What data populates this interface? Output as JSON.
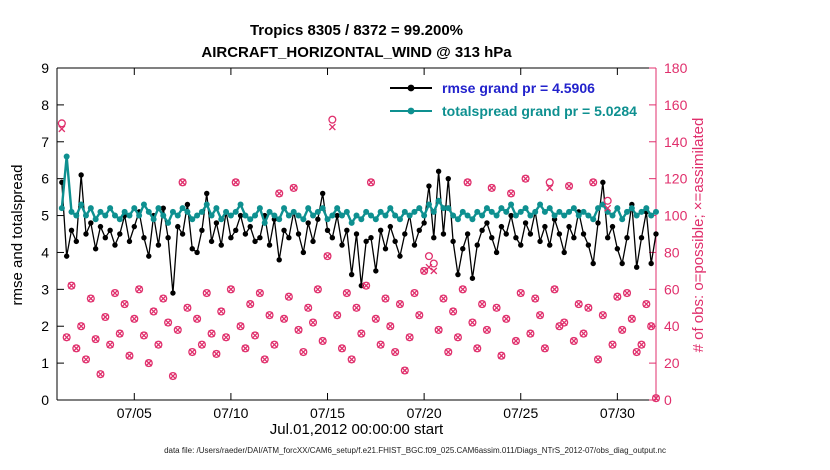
{
  "title_line1": "Tropics 8305 / 8372 = 99.200%",
  "title_line2": "AIRCRAFT_HORIZONTAL_WIND @ 313 hPa",
  "footer": "data file: /Users/raeder/DAI/ATM_forcXX/CAM6_setup/f.e21.FHIST_BGC.f09_025.CAM6assim.011/Diags_NTrS_2012-07/obs_diag_output.nc",
  "colors": {
    "rmse": "#000000",
    "totalspread": "#0e9090",
    "obs": "#e02f6c",
    "legend_rmse_text": "#2222cc",
    "axis": "#000000"
  },
  "legend": {
    "items": [
      {
        "label": "rmse grand pr = 4.5906",
        "line_color": "#000000",
        "text_color": "#2222cc"
      },
      {
        "label": "totalspread grand pr = 5.0284",
        "line_color": "#0e9090",
        "text_color": "#0e9090"
      }
    ]
  },
  "chart_data": {
    "type": "line+scatter",
    "xlabel": "Jul.01,2012 00:00:00 start",
    "x_range": [
      1,
      32
    ],
    "x_start_day": 1.25,
    "x_step_days": 0.25,
    "x_ticks": [
      {
        "v": 5,
        "label": "07/05"
      },
      {
        "v": 10,
        "label": "07/10"
      },
      {
        "v": 15,
        "label": "07/15"
      },
      {
        "v": 20,
        "label": "07/20"
      },
      {
        "v": 25,
        "label": "07/25"
      },
      {
        "v": 30,
        "label": "07/30"
      }
    ],
    "y_left": {
      "label": "rmse and totalspread",
      "range": [
        0,
        9
      ],
      "tick_step": 1
    },
    "y_right": {
      "label": "# of obs: o=possible; ×=assimilated",
      "range": [
        0,
        180
      ],
      "tick_step": 20
    },
    "rmse_grand_pr": 4.5906,
    "totalspread_grand_pr": 5.0284,
    "grid": false,
    "legend_position": "top-center-inside",
    "series": [
      {
        "name": "rmse",
        "axis": "left",
        "color": "#000000",
        "marker": "filled-circle",
        "values": [
          5.9,
          3.9,
          4.6,
          4.3,
          6.1,
          4.5,
          4.8,
          4.1,
          4.7,
          4.4,
          4.6,
          4.2,
          4.5,
          5.0,
          4.3,
          4.7,
          5.1,
          4.4,
          3.9,
          5.0,
          4.2,
          5.2,
          4.4,
          2.9,
          4.7,
          4.5,
          5.3,
          4.1,
          4.0,
          4.6,
          5.6,
          4.3,
          4.8,
          4.2,
          5.1,
          4.4,
          4.6,
          5.0,
          4.5,
          4.7,
          4.3,
          4.4,
          5.0,
          4.2,
          4.9,
          3.8,
          4.6,
          4.4,
          5.1,
          4.5,
          4.0,
          4.8,
          4.3,
          4.9,
          5.6,
          4.6,
          4.4,
          5.0,
          4.2,
          4.6,
          3.4,
          4.5,
          3.1,
          4.3,
          4.4,
          3.5,
          4.6,
          4.1,
          4.7,
          4.3,
          3.9,
          4.5,
          5.0,
          4.2,
          4.6,
          4.8,
          5.8,
          4.4,
          6.2,
          4.5,
          6.0,
          4.3,
          3.4,
          4.1,
          4.5,
          3.3,
          4.2,
          4.6,
          4.8,
          4.4,
          4.0,
          4.7,
          4.5,
          5.0,
          4.4,
          4.2,
          4.8,
          4.5,
          5.1,
          4.3,
          4.7,
          4.2,
          4.9,
          4.5,
          4.0,
          4.7,
          4.4,
          5.1,
          4.5,
          4.2,
          3.7,
          4.8,
          5.9,
          4.4,
          4.7,
          4.1,
          3.7,
          4.4,
          5.3,
          3.6,
          4.4,
          5.1,
          3.7,
          4.5
        ]
      },
      {
        "name": "totalspread",
        "axis": "left",
        "color": "#0e9090",
        "marker": "filled-circle",
        "values": [
          5.2,
          6.6,
          5.1,
          5.0,
          5.3,
          5.0,
          5.2,
          4.9,
          5.1,
          5.0,
          5.2,
          5.0,
          4.9,
          5.1,
          5.0,
          5.2,
          5.0,
          5.3,
          5.1,
          4.9,
          5.2,
          5.0,
          4.8,
          5.1,
          5.0,
          5.2,
          5.1,
          4.9,
          5.0,
          5.1,
          5.3,
          5.0,
          5.2,
          4.9,
          5.1,
          5.0,
          5.1,
          5.3,
          5.0,
          4.9,
          5.0,
          5.2,
          4.8,
          5.1,
          5.0,
          4.9,
          5.2,
          5.0,
          5.1,
          5.0,
          4.9,
          5.2,
          5.0,
          5.1,
          5.2,
          4.9,
          5.0,
          5.2,
          5.0,
          5.1,
          4.8,
          5.0,
          4.9,
          5.1,
          5.0,
          4.9,
          5.1,
          5.0,
          5.2,
          5.0,
          4.9,
          5.1,
          5.0,
          5.1,
          5.2,
          5.0,
          5.3,
          5.1,
          5.4,
          5.2,
          5.2,
          5.0,
          4.9,
          5.1,
          5.0,
          4.9,
          5.1,
          5.0,
          5.2,
          5.1,
          5.0,
          5.2,
          5.1,
          5.3,
          5.0,
          5.1,
          5.2,
          5.0,
          5.1,
          5.3,
          5.1,
          5.2,
          5.0,
          5.1,
          5.0,
          5.1,
          5.2,
          5.0,
          5.1,
          5.0,
          4.9,
          5.2,
          5.3,
          5.1,
          5.0,
          5.2,
          4.9,
          5.1,
          5.2,
          5.0,
          5.1,
          5.2,
          5.0,
          5.1
        ]
      },
      {
        "name": "observations possible",
        "axis": "right",
        "color": "#e02f6c",
        "marker": "open-circle",
        "values": [
          150,
          34,
          62,
          28,
          40,
          22,
          55,
          33,
          14,
          45,
          30,
          58,
          36,
          52,
          24,
          44,
          60,
          35,
          20,
          48,
          30,
          55,
          42,
          13,
          38,
          118,
          50,
          26,
          44,
          30,
          58,
          36,
          25,
          48,
          34,
          60,
          118,
          40,
          28,
          52,
          35,
          58,
          22,
          46,
          30,
          112,
          44,
          56,
          115,
          38,
          26,
          50,
          42,
          60,
          32,
          78,
          152,
          46,
          28,
          58,
          22,
          50,
          36,
          62,
          118,
          44,
          30,
          55,
          40,
          26,
          52,
          16,
          34,
          58,
          46,
          70,
          78,
          74,
          38,
          55,
          26,
          48,
          34,
          60,
          118,
          42,
          28,
          52,
          38,
          115,
          50,
          24,
          44,
          112,
          32,
          58,
          120,
          36,
          55,
          46,
          28,
          118,
          60,
          40,
          42,
          116,
          32,
          52,
          36,
          50,
          118,
          22,
          46,
          108,
          30,
          56,
          38,
          58,
          44,
          26,
          30,
          52,
          40,
          1
        ]
      },
      {
        "name": "observations assimilated",
        "axis": "right",
        "color": "#e02f6c",
        "marker": "x-cross",
        "values": [
          147,
          34,
          62,
          28,
          40,
          22,
          55,
          33,
          14,
          45,
          30,
          58,
          36,
          52,
          24,
          44,
          60,
          35,
          20,
          48,
          30,
          55,
          42,
          13,
          38,
          118,
          50,
          26,
          44,
          30,
          58,
          36,
          25,
          48,
          34,
          60,
          118,
          40,
          28,
          52,
          35,
          58,
          22,
          46,
          30,
          112,
          44,
          56,
          115,
          38,
          26,
          50,
          42,
          60,
          32,
          78,
          148,
          46,
          28,
          58,
          22,
          50,
          36,
          62,
          118,
          44,
          30,
          55,
          40,
          26,
          52,
          16,
          34,
          58,
          46,
          70,
          72,
          70,
          38,
          55,
          26,
          48,
          34,
          60,
          118,
          42,
          28,
          52,
          38,
          115,
          50,
          24,
          44,
          112,
          32,
          58,
          120,
          36,
          55,
          46,
          28,
          115,
          60,
          40,
          42,
          116,
          32,
          52,
          36,
          50,
          118,
          22,
          46,
          104,
          30,
          56,
          38,
          58,
          44,
          26,
          30,
          52,
          40,
          1
        ]
      }
    ]
  }
}
